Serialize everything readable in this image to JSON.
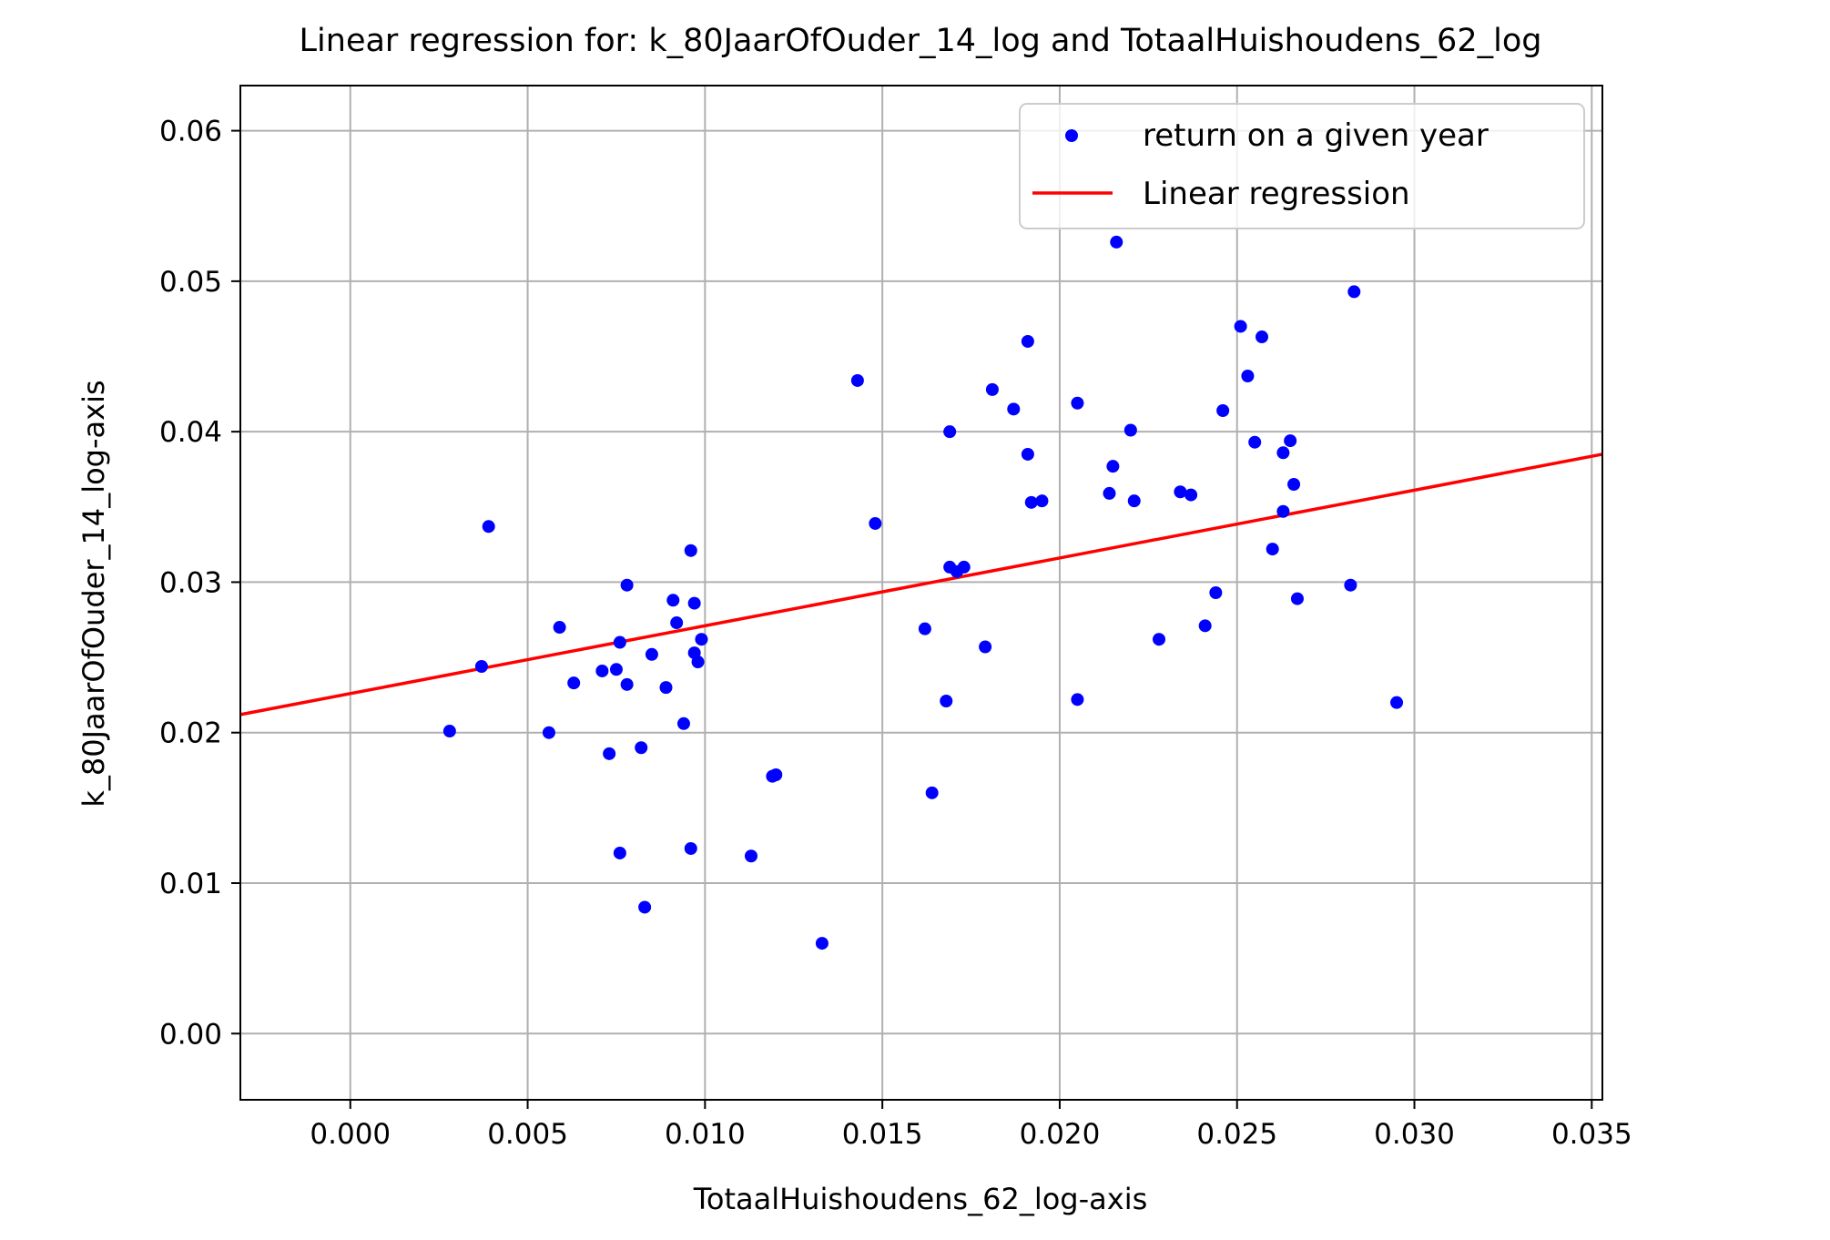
{
  "chart_data": {
    "type": "scatter",
    "title": "Linear regression for: k_80JaarOfOuder_14_log and TotaalHuishoudens_62_log",
    "xlabel": "TotaalHuishoudens_62_log-axis",
    "ylabel": "k_80JaarOfOuder_14_log-axis",
    "xlim": [
      -0.0031,
      0.0353
    ],
    "ylim": [
      -0.0044,
      0.063
    ],
    "xticks": [
      0.0,
      0.005,
      0.01,
      0.015,
      0.02,
      0.025,
      0.03,
      0.035
    ],
    "xtick_labels": [
      "0.000",
      "0.005",
      "0.010",
      "0.015",
      "0.020",
      "0.025",
      "0.030",
      "0.035"
    ],
    "yticks": [
      0.0,
      0.01,
      0.02,
      0.03,
      0.04,
      0.05,
      0.06
    ],
    "ytick_labels": [
      "0.00",
      "0.01",
      "0.02",
      "0.03",
      "0.04",
      "0.05",
      "0.06"
    ],
    "grid": true,
    "legend_position": "top-right",
    "series": [
      {
        "name": "return on a given year",
        "kind": "scatter",
        "color": "#0000ff",
        "points": [
          [
            0.0028,
            0.0201
          ],
          [
            0.0037,
            0.0244
          ],
          [
            0.0039,
            0.0337
          ],
          [
            0.0056,
            0.02
          ],
          [
            0.0059,
            0.027
          ],
          [
            0.0063,
            0.0233
          ],
          [
            0.0071,
            0.0241
          ],
          [
            0.0073,
            0.0186
          ],
          [
            0.0075,
            0.0242
          ],
          [
            0.0076,
            0.026
          ],
          [
            0.0076,
            0.012
          ],
          [
            0.0078,
            0.0232
          ],
          [
            0.0078,
            0.0298
          ],
          [
            0.0082,
            0.019
          ],
          [
            0.0083,
            0.0084
          ],
          [
            0.0085,
            0.0252
          ],
          [
            0.0089,
            0.023
          ],
          [
            0.0091,
            0.0288
          ],
          [
            0.0092,
            0.0273
          ],
          [
            0.0094,
            0.0206
          ],
          [
            0.0096,
            0.0321
          ],
          [
            0.0096,
            0.0123
          ],
          [
            0.0097,
            0.0286
          ],
          [
            0.0097,
            0.0253
          ],
          [
            0.0098,
            0.0247
          ],
          [
            0.0099,
            0.0262
          ],
          [
            0.0113,
            0.0118
          ],
          [
            0.0119,
            0.0171
          ],
          [
            0.012,
            0.0172
          ],
          [
            0.0133,
            0.006
          ],
          [
            0.0143,
            0.0434
          ],
          [
            0.0148,
            0.0339
          ],
          [
            0.0162,
            0.0269
          ],
          [
            0.0164,
            0.016
          ],
          [
            0.0168,
            0.0221
          ],
          [
            0.0169,
            0.04
          ],
          [
            0.0169,
            0.031
          ],
          [
            0.0171,
            0.0307
          ],
          [
            0.0173,
            0.031
          ],
          [
            0.0179,
            0.0257
          ],
          [
            0.0181,
            0.0428
          ],
          [
            0.0187,
            0.0415
          ],
          [
            0.0191,
            0.046
          ],
          [
            0.0191,
            0.0385
          ],
          [
            0.0192,
            0.0353
          ],
          [
            0.0195,
            0.0354
          ],
          [
            0.0205,
            0.0419
          ],
          [
            0.0205,
            0.0222
          ],
          [
            0.0214,
            0.0359
          ],
          [
            0.0215,
            0.0377
          ],
          [
            0.0216,
            0.0526
          ],
          [
            0.022,
            0.0401
          ],
          [
            0.0221,
            0.0354
          ],
          [
            0.0228,
            0.0262
          ],
          [
            0.0234,
            0.036
          ],
          [
            0.0237,
            0.0358
          ],
          [
            0.0241,
            0.0271
          ],
          [
            0.0244,
            0.0293
          ],
          [
            0.0246,
            0.0414
          ],
          [
            0.0251,
            0.047
          ],
          [
            0.0253,
            0.0437
          ],
          [
            0.0255,
            0.0393
          ],
          [
            0.0257,
            0.0463
          ],
          [
            0.026,
            0.0322
          ],
          [
            0.0263,
            0.0386
          ],
          [
            0.0263,
            0.0347
          ],
          [
            0.0265,
            0.0394
          ],
          [
            0.0266,
            0.0365
          ],
          [
            0.0267,
            0.0289
          ],
          [
            0.0282,
            0.0298
          ],
          [
            0.0283,
            0.0493
          ],
          [
            0.0295,
            0.022
          ]
        ]
      },
      {
        "name": "Linear regression",
        "kind": "line",
        "color": "#ff0000",
        "points": [
          [
            -0.0031,
            0.0212
          ],
          [
            0.0353,
            0.0385
          ]
        ]
      }
    ]
  }
}
